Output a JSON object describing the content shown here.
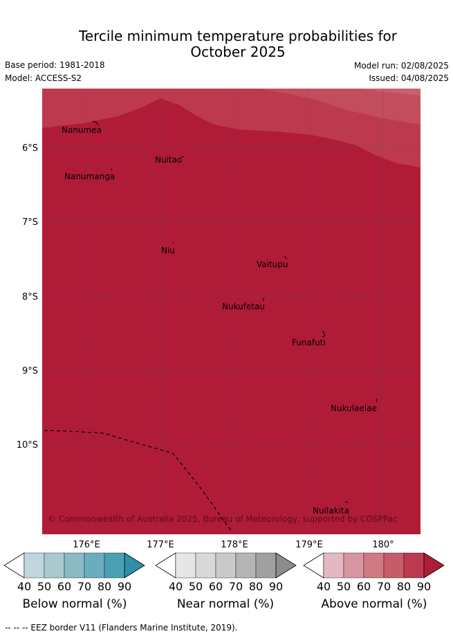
{
  "title_line1": "Tercile minimum temperature probabilities for",
  "title_line2": "October 2025",
  "base_period": "Base period: 1981-2018",
  "model": "Model: ACCESS-S2",
  "model_run": "Model run: 02/08/2025",
  "issued": "Issued: 04/08/2025",
  "x_ticks": [
    "176°E",
    "177°E",
    "178°E",
    "179°E",
    "180°"
  ],
  "y_ticks": [
    "6°S",
    "7°S",
    "8°S",
    "9°S",
    "10°S"
  ],
  "islands": [
    {
      "name": "Nanumea"
    },
    {
      "name": "Nuitao"
    },
    {
      "name": "Nanumanga"
    },
    {
      "name": "Niu"
    },
    {
      "name": "Vaitupu"
    },
    {
      "name": "Nukufetau"
    },
    {
      "name": "Funafuti"
    },
    {
      "name": "Nukulaelae"
    },
    {
      "name": "Nuilakita"
    }
  ],
  "copyright": "© Commonwealth of Australia 2025, Bureau of Meteorology, supported by COSPPac",
  "colorbars": [
    {
      "label": "Below normal (%)",
      "ticks": [
        "40",
        "50",
        "60",
        "70",
        "80",
        "90"
      ],
      "colors": [
        "#ffffff",
        "#bfd6dc",
        "#a8c9cf",
        "#8bb9c4",
        "#6aadbd",
        "#4aa1b4",
        "#2e90a5"
      ]
    },
    {
      "label": "Near normal (%)",
      "ticks": [
        "40",
        "50",
        "60",
        "70",
        "80",
        "90"
      ],
      "colors": [
        "#ffffff",
        "#e6e6e6",
        "#d9d9d9",
        "#cacaca",
        "#b5b5b5",
        "#a0a0a0",
        "#8c8c8c"
      ]
    },
    {
      "label": "Above normal (%)",
      "ticks": [
        "40",
        "50",
        "60",
        "70",
        "80",
        "90"
      ],
      "colors": [
        "#ffffff",
        "#e3b8c0",
        "#d896a0",
        "#d17a84",
        "#c65c6a",
        "#bd3a4e",
        "#b01c38"
      ]
    }
  ],
  "eez_note": "--  --  -- EEZ border V11 (Flanders Marine Institute, 2019).",
  "colors": {
    "above_90": "#b01c38",
    "above_80": "#bd3a4e",
    "above_70": "#c65c6a"
  }
}
